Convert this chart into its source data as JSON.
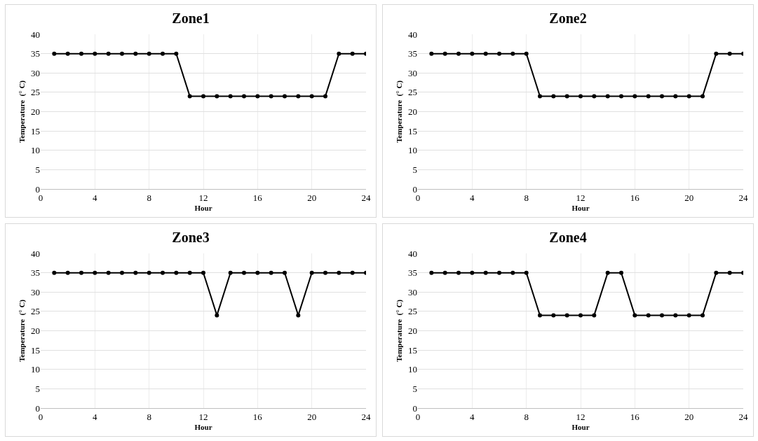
{
  "chart_data": [
    {
      "type": "line",
      "title": "Zone1",
      "xlabel": "Hour",
      "ylabel": "Temperature  (° C)",
      "x": [
        1,
        2,
        3,
        4,
        5,
        6,
        7,
        8,
        9,
        10,
        11,
        12,
        13,
        14,
        15,
        16,
        17,
        18,
        19,
        20,
        21,
        22,
        23,
        24
      ],
      "series": [
        {
          "color": "#000000",
          "values": [
            35,
            35,
            35,
            35,
            35,
            35,
            35,
            35,
            35,
            35,
            24,
            24,
            24,
            24,
            24,
            24,
            24,
            24,
            24,
            24,
            24,
            35,
            35,
            35
          ]
        }
      ],
      "xlim": [
        0,
        24
      ],
      "ylim": [
        0,
        40
      ],
      "xticks": [
        0,
        4,
        8,
        12,
        16,
        20,
        24
      ],
      "yticks": [
        0,
        5,
        10,
        15,
        20,
        25,
        30,
        35,
        40
      ],
      "grid": true,
      "marker": "circle",
      "line_style": "solid"
    },
    {
      "type": "line",
      "title": "Zone2",
      "xlabel": "Hour",
      "ylabel": "Temperature  (° C)",
      "x": [
        1,
        2,
        3,
        4,
        5,
        6,
        7,
        8,
        9,
        10,
        11,
        12,
        13,
        14,
        15,
        16,
        17,
        18,
        19,
        20,
        21,
        22,
        23,
        24
      ],
      "series": [
        {
          "color": "#000000",
          "values": [
            35,
            35,
            35,
            35,
            35,
            35,
            35,
            35,
            24,
            24,
            24,
            24,
            24,
            24,
            24,
            24,
            24,
            24,
            24,
            24,
            24,
            35,
            35,
            35
          ]
        }
      ],
      "xlim": [
        0,
        24
      ],
      "ylim": [
        0,
        40
      ],
      "xticks": [
        0,
        4,
        8,
        12,
        16,
        20,
        24
      ],
      "yticks": [
        0,
        5,
        10,
        15,
        20,
        25,
        30,
        35,
        40
      ],
      "grid": true,
      "marker": "circle",
      "line_style": "solid"
    },
    {
      "type": "line",
      "title": "Zone3",
      "xlabel": "Hour",
      "ylabel": "Temperature  (° C)",
      "x": [
        1,
        2,
        3,
        4,
        5,
        6,
        7,
        8,
        9,
        10,
        11,
        12,
        13,
        14,
        15,
        16,
        17,
        18,
        19,
        20,
        21,
        22,
        23,
        24
      ],
      "series": [
        {
          "color": "#000000",
          "values": [
            35,
            35,
            35,
            35,
            35,
            35,
            35,
            35,
            35,
            35,
            35,
            35,
            24,
            35,
            35,
            35,
            35,
            35,
            24,
            35,
            35,
            35,
            35,
            35
          ]
        }
      ],
      "xlim": [
        0,
        24
      ],
      "ylim": [
        0,
        40
      ],
      "xticks": [
        0,
        4,
        8,
        12,
        16,
        20,
        24
      ],
      "yticks": [
        0,
        5,
        10,
        15,
        20,
        25,
        30,
        35,
        40
      ],
      "grid": true,
      "marker": "circle",
      "line_style": "solid"
    },
    {
      "type": "line",
      "title": "Zone4",
      "xlabel": "Hour",
      "ylabel": "Temperature  (° C)",
      "x": [
        1,
        2,
        3,
        4,
        5,
        6,
        7,
        8,
        9,
        10,
        11,
        12,
        13,
        14,
        15,
        16,
        17,
        18,
        19,
        20,
        21,
        22,
        23,
        24
      ],
      "series": [
        {
          "color": "#000000",
          "values": [
            35,
            35,
            35,
            35,
            35,
            35,
            35,
            35,
            24,
            24,
            24,
            24,
            24,
            35,
            35,
            24,
            24,
            24,
            24,
            24,
            24,
            35,
            35,
            35
          ]
        }
      ],
      "xlim": [
        0,
        24
      ],
      "ylim": [
        0,
        40
      ],
      "xticks": [
        0,
        4,
        8,
        12,
        16,
        20,
        24
      ],
      "yticks": [
        0,
        5,
        10,
        15,
        20,
        25,
        30,
        35,
        40
      ],
      "grid": true,
      "marker": "circle",
      "line_style": "solid"
    }
  ]
}
